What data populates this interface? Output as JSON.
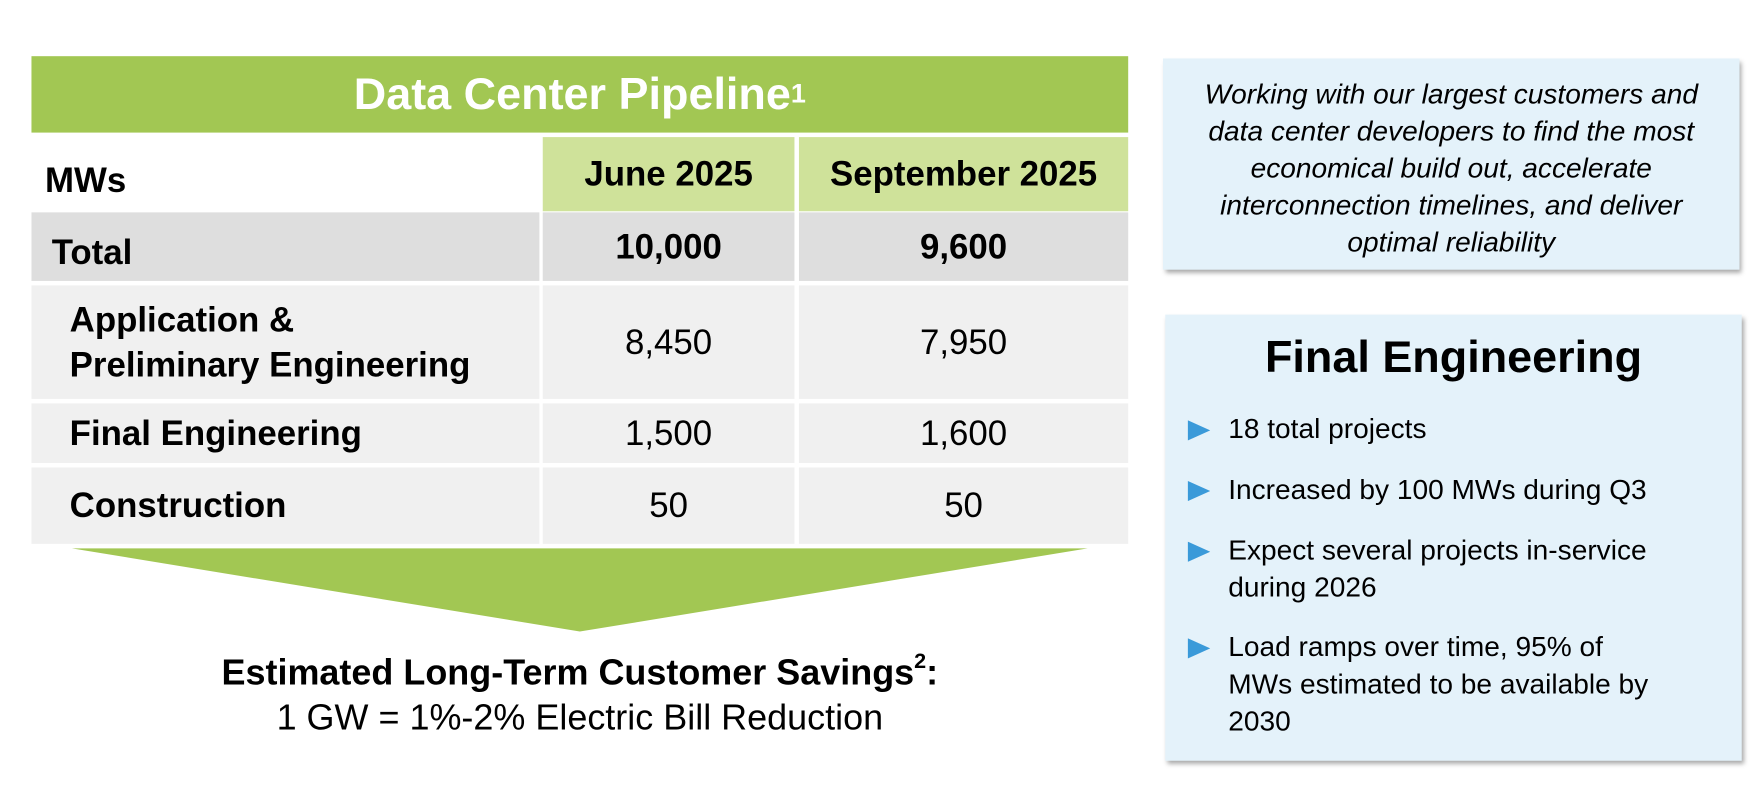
{
  "table": {
    "title": "Data Center Pipeline",
    "title_note": "1",
    "header": [
      "MWs",
      "June 2025",
      "September 2025"
    ],
    "rows": [
      [
        [
          "Total"
        ],
        "10,000",
        "9,600"
      ],
      [
        [
          "Application &",
          "Preliminary Engineering"
        ],
        "8,450",
        "7,950"
      ],
      [
        [
          "Final Engineering"
        ],
        "1,500",
        "1,600"
      ],
      [
        [
          "Construction"
        ],
        "50",
        "50"
      ]
    ]
  },
  "savings": {
    "title": "Estimated Long-Term Customer Savings",
    "title_note": "2",
    "title_suffix": ":",
    "text": "1 GW = 1%-2% Electric Bill Reduction"
  },
  "quote": "Working with our largest customers and data center developers to find the most economical build out, accelerate interconnection timelines, and deliver optimal reliability",
  "final_engineering": {
    "title": "Final Engineering",
    "bullets": [
      "18 total projects",
      "Increased by 100 MWs during Q3",
      "Expect several projects in-service during 2026",
      "Load ramps over time, 95% of MWs estimated to be available by 2030"
    ]
  }
}
